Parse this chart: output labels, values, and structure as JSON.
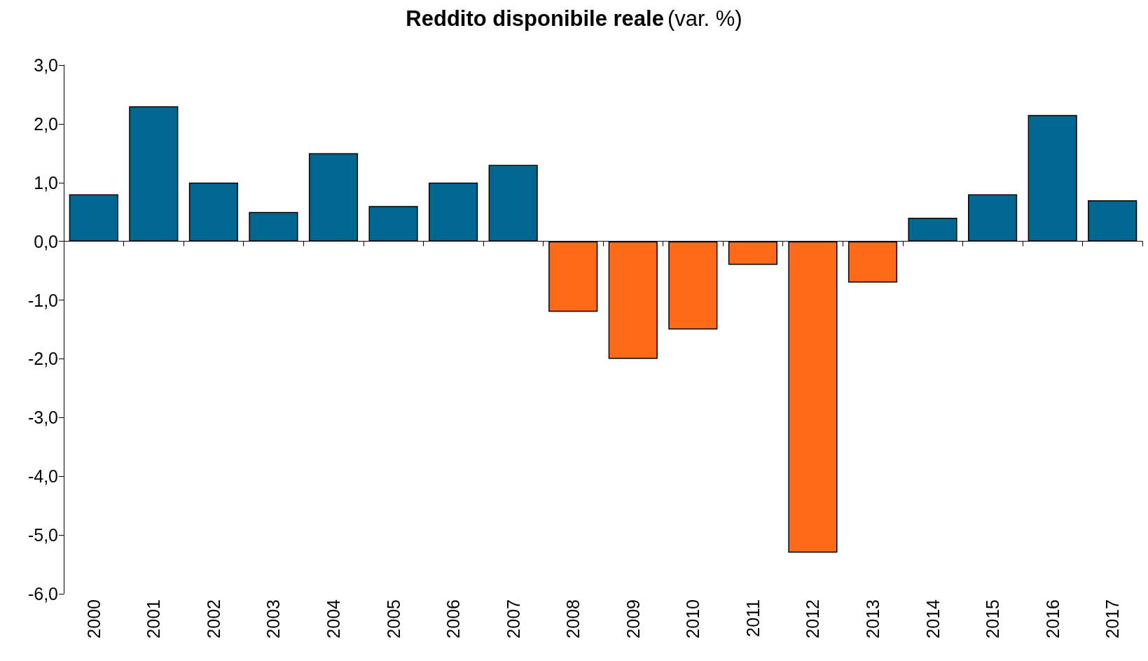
{
  "chart_data": {
    "type": "bar",
    "title": "Reddito disponibile reale",
    "subtitle": "(var. %)",
    "categories": [
      "2000",
      "2001",
      "2002",
      "2003",
      "2004",
      "2005",
      "2006",
      "2007",
      "2008",
      "2009",
      "2010",
      "2011",
      "2012",
      "2013",
      "2014",
      "2015",
      "2016",
      "2017"
    ],
    "values": [
      0.8,
      2.3,
      1.0,
      0.5,
      1.5,
      0.6,
      1.0,
      1.3,
      -1.2,
      -2.0,
      -1.5,
      -0.4,
      -5.3,
      -0.7,
      0.4,
      0.8,
      2.15,
      0.7
    ],
    "colors": [
      "#006890",
      "#006890",
      "#006890",
      "#006890",
      "#006890",
      "#006890",
      "#006890",
      "#006890",
      "#ff6a19",
      "#ff6a19",
      "#ff6a19",
      "#ff6a19",
      "#ff6a19",
      "#ff6a19",
      "#006890",
      "#006890",
      "#006890",
      "#006890"
    ],
    "ylim": [
      -6,
      3
    ],
    "yticks": [
      {
        "value": -6,
        "label": "-6,0"
      },
      {
        "value": -5,
        "label": "-5,0"
      },
      {
        "value": -4,
        "label": "-4,0"
      },
      {
        "value": -3,
        "label": "-3,0"
      },
      {
        "value": -2,
        "label": "-2,0"
      },
      {
        "value": -1,
        "label": "-1,0"
      },
      {
        "value": 0,
        "label": "0,0"
      },
      {
        "value": 1,
        "label": "1,0"
      },
      {
        "value": 2,
        "label": "2,0"
      },
      {
        "value": 3,
        "label": "3,0"
      }
    ]
  }
}
